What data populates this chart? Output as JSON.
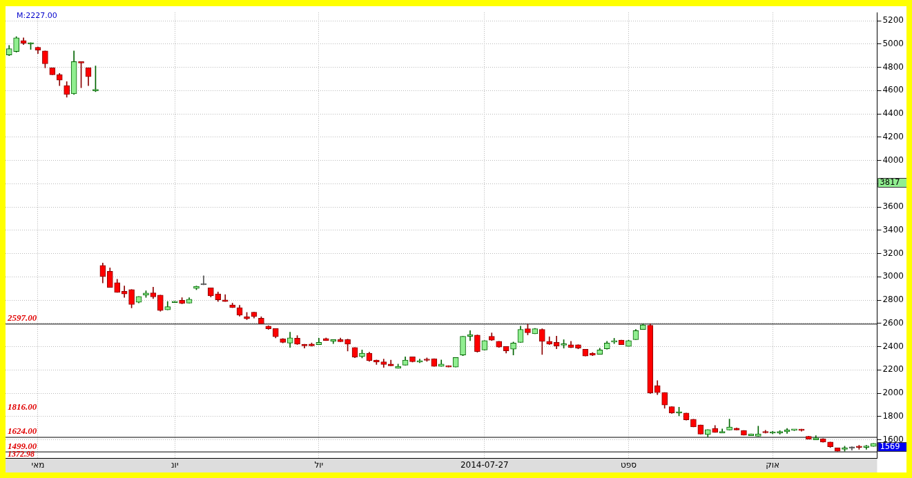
{
  "chart_data": {
    "type": "candlestick",
    "categories": [
      null,
      null,
      null,
      null,
      "מאי",
      null,
      null,
      null,
      null,
      null,
      null,
      null,
      null,
      null,
      null,
      null,
      null,
      null,
      null,
      null,
      null,
      null,
      null,
      "יונ",
      null,
      null,
      null,
      null,
      null,
      null,
      null,
      null,
      null,
      null,
      null,
      null,
      null,
      null,
      null,
      null,
      null,
      null,
      null,
      "יול",
      null,
      null,
      null,
      null,
      null,
      null,
      null,
      null,
      null,
      null,
      null,
      null,
      null,
      null,
      null,
      null,
      null,
      null,
      null,
      null,
      null,
      null,
      "2014-07-27",
      null,
      null,
      null,
      null,
      null,
      null,
      null,
      null,
      null,
      null,
      null,
      null,
      null,
      null,
      null,
      null,
      null,
      null,
      null,
      "ספט",
      null,
      null,
      null,
      null,
      null,
      null,
      null,
      null,
      null,
      null,
      null,
      null,
      null,
      null,
      null,
      null,
      null,
      null,
      null,
      "אוק",
      null,
      null,
      null,
      null,
      null,
      null,
      null,
      null,
      null,
      null,
      null,
      null,
      null,
      null
    ],
    "ohlc": [
      [
        4906,
        4988,
        4900,
        4959
      ],
      [
        4935,
        5064,
        4930,
        5053
      ],
      [
        5029,
        5053,
        4994,
        5006
      ],
      [
        5000,
        5012,
        4953,
        5012
      ],
      [
        4971,
        4975,
        4918,
        4947
      ],
      [
        4941,
        4941,
        4795,
        4830
      ],
      [
        4795,
        4795,
        4736,
        4736
      ],
      [
        4736,
        4748,
        4642,
        4689
      ],
      [
        4642,
        4677,
        4543,
        4566
      ],
      [
        4572,
        4941,
        4566,
        4848
      ],
      [
        4848,
        4848,
        4625,
        4836
      ],
      [
        4795,
        4795,
        4642,
        4719
      ],
      [
        4598,
        4812,
        4590,
        4600
      ],
      [
        3097,
        3118,
        2948,
        3003
      ],
      [
        3048,
        3077,
        2909,
        2909
      ],
      [
        2950,
        2979,
        2866,
        2866
      ],
      [
        2876,
        2921,
        2823,
        2853
      ],
      [
        2891,
        2891,
        2733,
        2762
      ],
      [
        2782,
        2831,
        2776,
        2831
      ],
      [
        2843,
        2880,
        2823,
        2860
      ],
      [
        2862,
        2911,
        2812,
        2827
      ],
      [
        2843,
        2843,
        2704,
        2710
      ],
      [
        2716,
        2788,
        2716,
        2743
      ],
      [
        2778,
        2790,
        2778,
        2788
      ],
      [
        2798,
        2821,
        2768,
        2772
      ],
      [
        2774,
        2821,
        2774,
        2808
      ],
      [
        2900,
        2921,
        2889,
        2919
      ],
      [
        2931,
        3009,
        2931,
        2931
      ],
      [
        2905,
        2905,
        2827,
        2837
      ],
      [
        2853,
        2870,
        2788,
        2802
      ],
      [
        2802,
        2847,
        2788,
        2788
      ],
      [
        2759,
        2774,
        2735,
        2735
      ],
      [
        2735,
        2755,
        2661,
        2671
      ],
      [
        2657,
        2694,
        2632,
        2639
      ],
      [
        2696,
        2696,
        2645,
        2659
      ],
      [
        2645,
        2657,
        2597,
        2597
      ],
      [
        2577,
        2580,
        2548,
        2554
      ],
      [
        2555,
        2555,
        2475,
        2485
      ],
      [
        2466,
        2470,
        2432,
        2437
      ],
      [
        2431,
        2524,
        2393,
        2475
      ],
      [
        2472,
        2495,
        2418,
        2422
      ],
      [
        2421,
        2421,
        2387,
        2407
      ],
      [
        2422,
        2432,
        2404,
        2407
      ],
      [
        2417,
        2472,
        2417,
        2437
      ],
      [
        2469,
        2475,
        2452,
        2452
      ],
      [
        2446,
        2460,
        2426,
        2460
      ],
      [
        2460,
        2474,
        2442,
        2442
      ],
      [
        2460,
        2465,
        2362,
        2421
      ],
      [
        2393,
        2393,
        2305,
        2311
      ],
      [
        2315,
        2372,
        2303,
        2343
      ],
      [
        2343,
        2352,
        2274,
        2280
      ],
      [
        2284,
        2286,
        2247,
        2267
      ],
      [
        2270,
        2294,
        2221,
        2247
      ],
      [
        2251,
        2284,
        2235,
        2235
      ],
      [
        2214,
        2251,
        2214,
        2231
      ],
      [
        2241,
        2313,
        2241,
        2284
      ],
      [
        2313,
        2313,
        2268,
        2270
      ],
      [
        2267,
        2294,
        2262,
        2280
      ],
      [
        2292,
        2303,
        2274,
        2282
      ],
      [
        2296,
        2296,
        2231,
        2231
      ],
      [
        2231,
        2286,
        2231,
        2251
      ],
      [
        2237,
        2237,
        2225,
        2225
      ],
      [
        2225,
        2307,
        2225,
        2307
      ],
      [
        2329,
        2489,
        2323,
        2489
      ],
      [
        2489,
        2538,
        2452,
        2504
      ],
      [
        2499,
        2501,
        2352,
        2358
      ],
      [
        2372,
        2452,
        2370,
        2452
      ],
      [
        2489,
        2518,
        2452,
        2456
      ],
      [
        2446,
        2446,
        2393,
        2397
      ],
      [
        2401,
        2401,
        2344,
        2364
      ],
      [
        2378,
        2440,
        2329,
        2431
      ],
      [
        2437,
        2577,
        2437,
        2548
      ],
      [
        2554,
        2592,
        2501,
        2520
      ],
      [
        2511,
        2557,
        2511,
        2554
      ],
      [
        2548,
        2554,
        2333,
        2446
      ],
      [
        2446,
        2485,
        2418,
        2421
      ],
      [
        2437,
        2491,
        2381,
        2405
      ],
      [
        2413,
        2460,
        2387,
        2421
      ],
      [
        2417,
        2446,
        2390,
        2393
      ],
      [
        2417,
        2417,
        2381,
        2387
      ],
      [
        2378,
        2378,
        2319,
        2319
      ],
      [
        2343,
        2350,
        2323,
        2327
      ],
      [
        2335,
        2387,
        2335,
        2372
      ],
      [
        2381,
        2446,
        2378,
        2431
      ],
      [
        2440,
        2472,
        2426,
        2446
      ],
      [
        2456,
        2456,
        2417,
        2417
      ],
      [
        2403,
        2456,
        2403,
        2452
      ],
      [
        2460,
        2548,
        2460,
        2538
      ],
      [
        2548,
        2597,
        2548,
        2587
      ],
      [
        2583,
        2597,
        1997,
        2003
      ],
      [
        2065,
        2108,
        1987,
        2006
      ],
      [
        2006,
        2006,
        1870,
        1899
      ],
      [
        1885,
        1885,
        1826,
        1830
      ],
      [
        1830,
        1880,
        1805,
        1840
      ],
      [
        1830,
        1830,
        1768,
        1772
      ],
      [
        1776,
        1776,
        1710,
        1710
      ],
      [
        1727,
        1727,
        1649,
        1649
      ],
      [
        1645,
        1688,
        1625,
        1688
      ],
      [
        1698,
        1723,
        1664,
        1664
      ],
      [
        1659,
        1694,
        1659,
        1664
      ],
      [
        1684,
        1778,
        1684,
        1710
      ],
      [
        1700,
        1703,
        1684,
        1684
      ],
      [
        1680,
        1680,
        1639,
        1639
      ],
      [
        1635,
        1651,
        1635,
        1651
      ],
      [
        1631,
        1717,
        1631,
        1651
      ],
      [
        1669,
        1682,
        1657,
        1660
      ],
      [
        1657,
        1672,
        1651,
        1662
      ],
      [
        1659,
        1678,
        1649,
        1664
      ],
      [
        1669,
        1698,
        1655,
        1684
      ],
      [
        1681,
        1686,
        1678,
        1682
      ],
      [
        1688,
        1692,
        1674,
        1680
      ],
      [
        1629,
        1631,
        1606,
        1606
      ],
      [
        1600,
        1635,
        1600,
        1616
      ],
      [
        1608,
        1610,
        1579,
        1581
      ],
      [
        1581,
        1581,
        1534,
        1541
      ],
      [
        1531,
        1531,
        1502,
        1502
      ],
      [
        1518,
        1545,
        1502,
        1528
      ],
      [
        1528,
        1541,
        1510,
        1528
      ],
      [
        1536,
        1553,
        1518,
        1534
      ],
      [
        1535,
        1553,
        1518,
        1537
      ],
      [
        1543,
        1569,
        1543,
        1569
      ]
    ],
    "ylim": [
      1440,
      5270
    ],
    "yticks": [
      1600,
      1800,
      2000,
      2200,
      2400,
      2600,
      2800,
      3000,
      3200,
      3400,
      3600,
      {
        "value": 3800,
        "label": null
      },
      4000,
      4200,
      4400,
      4600,
      4800,
      5000,
      5200
    ],
    "grid": true,
    "ref_lines": [
      {
        "axis": "y",
        "value": 2597,
        "label": "2597.00",
        "color": "#000000"
      },
      {
        "axis": "y",
        "value": 1624,
        "label": "1624.00",
        "color": "#000000"
      },
      {
        "axis": "y",
        "value": 1499,
        "label": "1499.00",
        "color": "#000000"
      }
    ],
    "annotations": [
      "M:2227.00",
      "1816.00",
      "1372.98",
      "3817",
      "1569"
    ]
  }
}
